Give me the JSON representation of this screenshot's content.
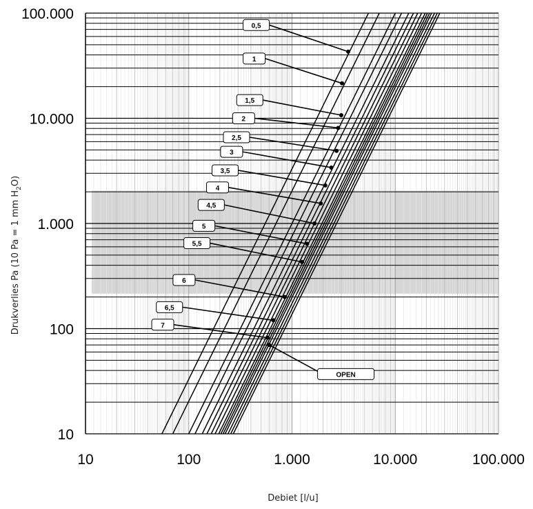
{
  "chart_data": {
    "type": "line",
    "x_scale": "log",
    "y_scale": "log",
    "xlim": [
      10,
      100000
    ],
    "ylim": [
      10,
      100000
    ],
    "xlabel": "Debiet [l/u]",
    "ylabel": {
      "before_sub": "Drukverlies Pa (10 Pa = 1 mm H",
      "sub": "2",
      "after_sub": "O)"
    },
    "x_ticks": [
      {
        "value": 10,
        "label": "10"
      },
      {
        "value": 100,
        "label": "100"
      },
      {
        "value": 1000,
        "label": "1.000"
      },
      {
        "value": 10000,
        "label": "10.000"
      },
      {
        "value": 100000,
        "label": "100.000"
      }
    ],
    "y_ticks": [
      {
        "value": 10,
        "label": "10"
      },
      {
        "value": 100,
        "label": "100"
      },
      {
        "value": 1000,
        "label": "1.000"
      },
      {
        "value": 10000,
        "label": "10.000"
      },
      {
        "value": 100000,
        "label": "100.000"
      }
    ],
    "grid": true,
    "shaded_band": {
      "x_from": 11.5,
      "x_to": 100000,
      "y_from": 215,
      "y_to": 2050
    },
    "series": [
      {
        "name": "0,5",
        "flow_at_10pa": 55,
        "marker": [
          3500,
          43000
        ],
        "label_at": [
          450,
          77000
        ]
      },
      {
        "name": "1",
        "flow_at_10pa": 70,
        "marker": [
          3050,
          21500
        ],
        "label_at": [
          430,
          37000
        ]
      },
      {
        "name": "1,5",
        "flow_at_10pa": 100,
        "marker": [
          3000,
          10700
        ],
        "label_at": [
          390,
          14900
        ]
      },
      {
        "name": "2",
        "flow_at_10pa": 115,
        "marker": [
          2800,
          8100
        ],
        "label_at": [
          340,
          10000
        ]
      },
      {
        "name": "2,5",
        "flow_at_10pa": 135,
        "marker": [
          2700,
          4900
        ],
        "label_at": [
          290,
          6600
        ]
      },
      {
        "name": "3",
        "flow_at_10pa": 150,
        "marker": [
          2400,
          3400
        ],
        "label_at": [
          260,
          4800
        ]
      },
      {
        "name": "3,5",
        "flow_at_10pa": 165,
        "marker": [
          2100,
          2300
        ],
        "label_at": [
          225,
          3200
        ]
      },
      {
        "name": "4",
        "flow_at_10pa": 180,
        "marker": [
          1900,
          1550
        ],
        "label_at": [
          190,
          2200
        ]
      },
      {
        "name": "4,5",
        "flow_at_10pa": 195,
        "marker": [
          1650,
          1000
        ],
        "label_at": [
          165,
          1500
        ]
      },
      {
        "name": "5",
        "flow_at_10pa": 205,
        "marker": [
          1400,
          640
        ],
        "label_at": [
          140,
          950
        ]
      },
      {
        "name": "5,5",
        "flow_at_10pa": 215,
        "marker": [
          1250,
          430
        ],
        "label_at": [
          120,
          650
        ]
      },
      {
        "name": "6",
        "flow_at_10pa": 225,
        "marker": [
          850,
          200
        ],
        "label_at": [
          90,
          290
        ]
      },
      {
        "name": "6,5",
        "flow_at_10pa": 240,
        "marker": [
          660,
          120
        ],
        "label_at": [
          65,
          160
        ]
      },
      {
        "name": "7",
        "flow_at_10pa": 255,
        "marker": [
          580,
          82
        ],
        "label_at": [
          56,
          109
        ]
      },
      {
        "name": "OPEN",
        "flow_at_10pa": 270,
        "marker": [
          600,
          70
        ],
        "label_at": [
          2000,
          37
        ]
      }
    ]
  }
}
